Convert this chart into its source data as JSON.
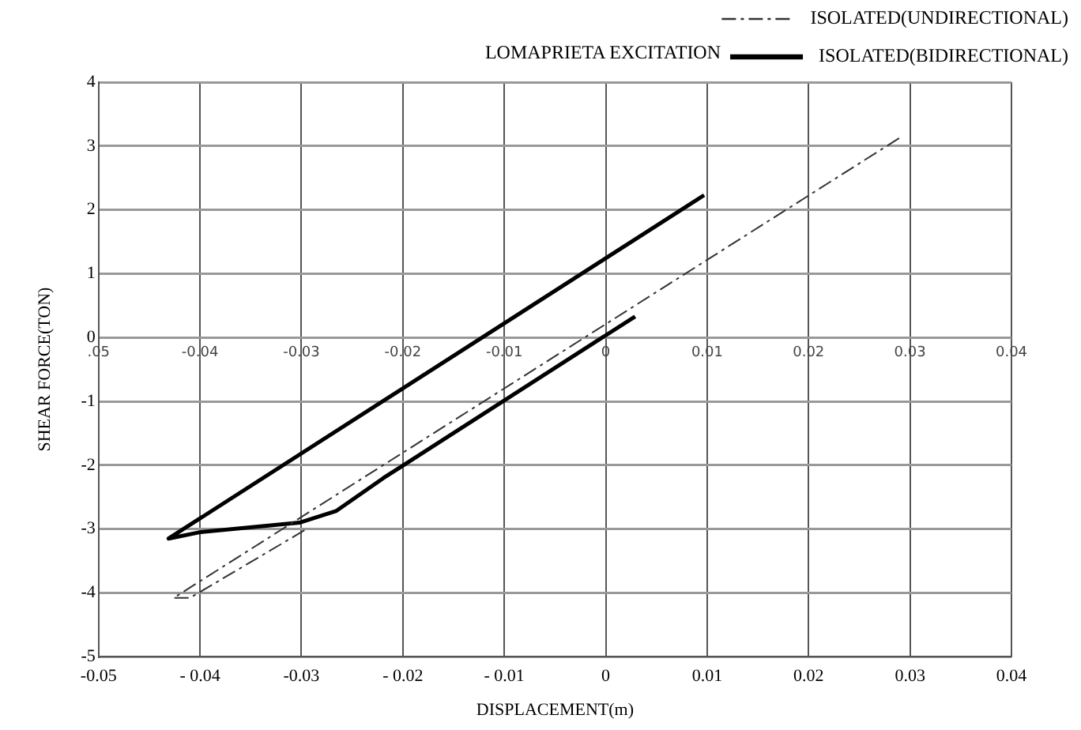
{
  "chart_data": {
    "type": "line",
    "title": "LOMAPRIETA EXCITATION",
    "xlabel": "DISPLACEMENT(m)",
    "ylabel": "SHEAR FORCE(TON)",
    "xlim": [
      -0.05,
      0.04
    ],
    "xticks": [
      {
        "value": -0.05,
        "label": "-0.05"
      },
      {
        "value": -0.04,
        "label": "- 0.04"
      },
      {
        "value": -0.03,
        "label": "-0.03"
      },
      {
        "value": -0.02,
        "label": "- 0.02"
      },
      {
        "value": -0.01,
        "label": "- 0.01"
      },
      0,
      0.01,
      0.02,
      0.03,
      0.04
    ],
    "x2lim": [
      -0.05,
      0.04
    ],
    "x2ticks": [
      {
        "value": -0.05,
        "label": ".05"
      },
      -0.04,
      -0.03,
      -0.02,
      -0.01,
      0,
      0.01,
      0.02,
      0.03,
      0.04
    ],
    "ylim": [
      -5,
      4
    ],
    "yticks": [
      -5,
      -4,
      -3,
      -2,
      -1,
      0,
      1,
      2,
      3,
      4
    ],
    "grid": true,
    "legend": "top right",
    "marker": "none",
    "series": [
      {
        "name": "ISOLATED(UNDIRECTIONAL)",
        "color": "#333333",
        "line_style": "dashed",
        "x": [
          -0.0297,
          -0.041,
          -0.0426,
          0.029
        ],
        "values": [
          -3.02,
          -4.08,
          -4.08,
          3.13
        ]
      },
      {
        "name": "ISOLATED(BIDIRECTIONAL)",
        "color": "#000000",
        "line_style": "solid",
        "x": [
          0.0029,
          -0.0219,
          -0.0266,
          -0.0302,
          -0.04,
          -0.0431,
          0.0097
        ],
        "values": [
          0.33,
          -2.2,
          -2.72,
          -2.9,
          -3.05,
          -3.15,
          2.23
        ]
      }
    ]
  }
}
